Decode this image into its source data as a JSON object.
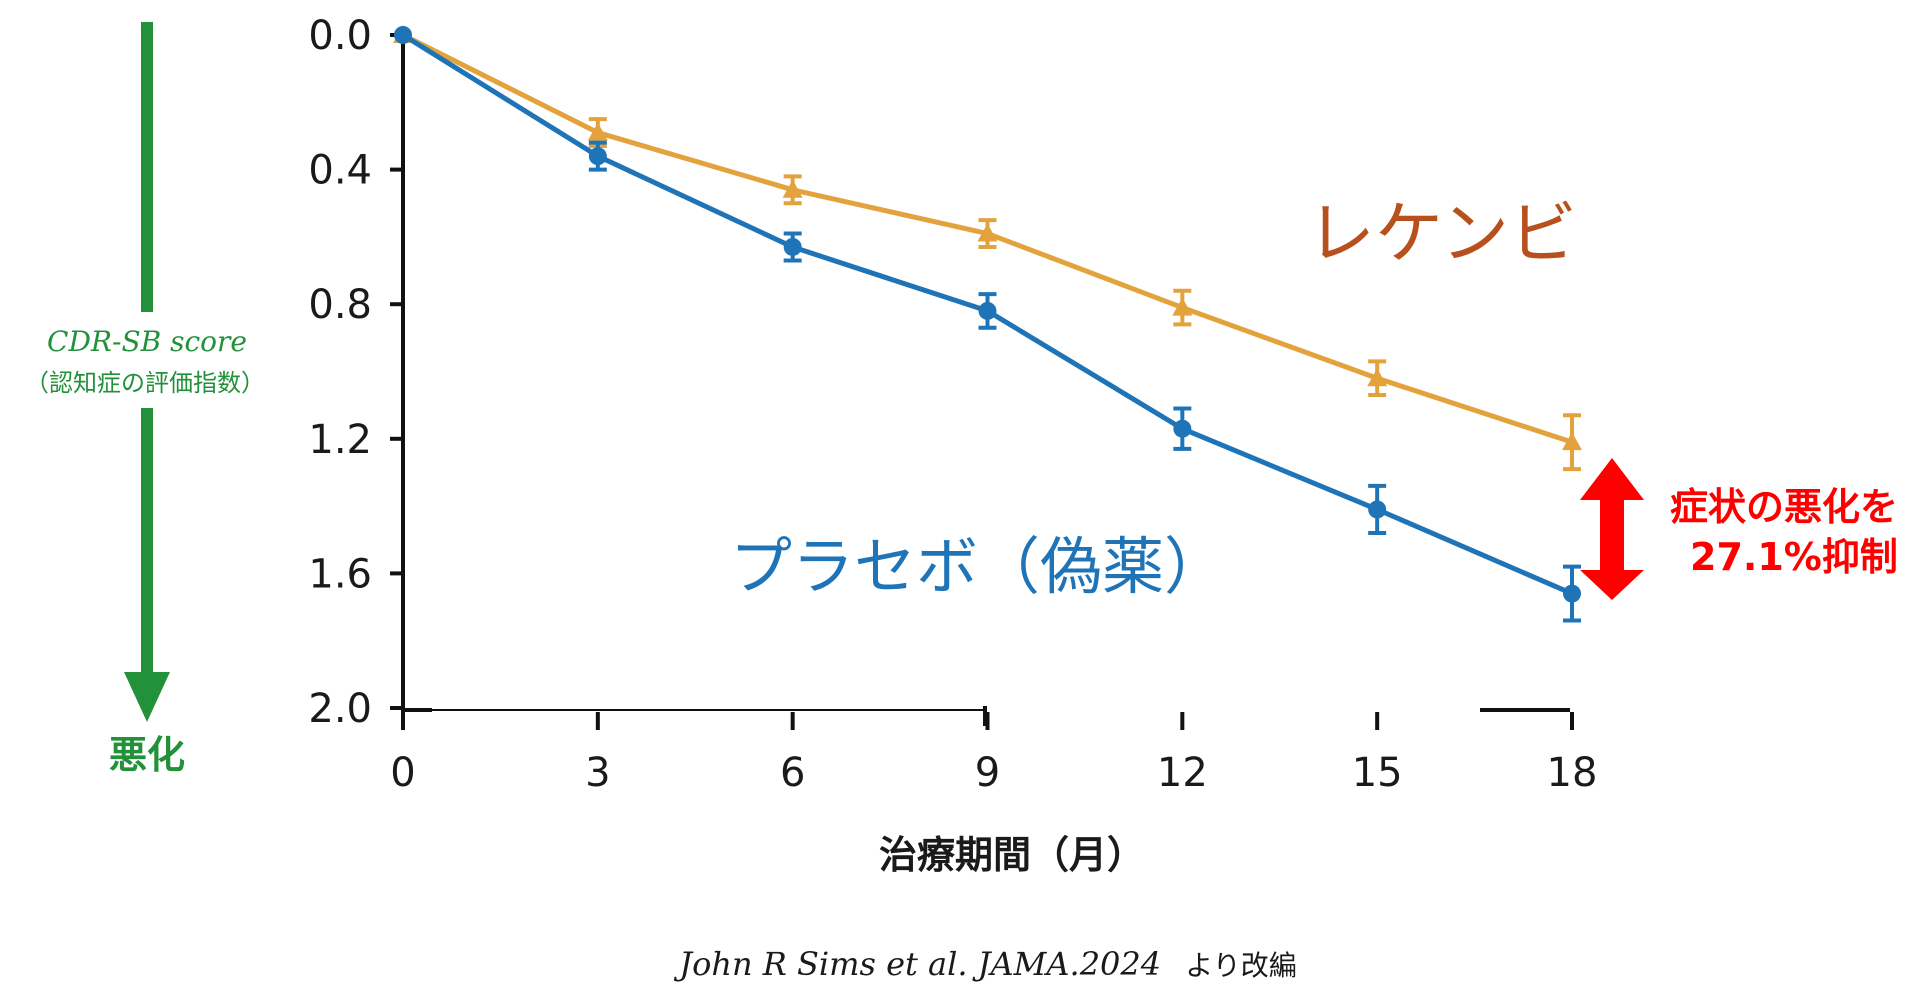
{
  "chart_data": {
    "type": "line",
    "title": "",
    "xlabel": "治療期間（月）",
    "ylabel": "CDR-SB score",
    "ylabel_sub": "（認知症の評価指数）",
    "worse_label": "悪化",
    "x": [
      0,
      3,
      6,
      9,
      12,
      15,
      18
    ],
    "x_ticks": [
      "0",
      "3",
      "6",
      "9",
      "12",
      "15",
      "18"
    ],
    "y_ticks": [
      "0.0",
      "0.4",
      "0.8",
      "1.2",
      "1.6",
      "2.0"
    ],
    "ylim": [
      0,
      2.0
    ],
    "y_inverted": true,
    "series": [
      {
        "name": "レケンビ",
        "color": "#e3a23c",
        "marker": "triangle",
        "values": [
          0.0,
          0.29,
          0.46,
          0.59,
          0.81,
          1.02,
          1.21
        ],
        "errors": [
          0.0,
          0.04,
          0.04,
          0.04,
          0.05,
          0.05,
          0.08
        ]
      },
      {
        "name": "プラセボ（偽薬）",
        "color": "#1f74b8",
        "marker": "circle",
        "values": [
          0.0,
          0.36,
          0.63,
          0.82,
          1.17,
          1.41,
          1.66
        ],
        "errors": [
          0.0,
          0.04,
          0.04,
          0.05,
          0.06,
          0.07,
          0.08
        ]
      }
    ],
    "annotation": {
      "line1": "症状の悪化を",
      "line2": "27.1%抑制",
      "color": "#ff0000"
    },
    "citation": "John R Sims et al. JAMA.2024",
    "citation_suffix": "より改編"
  }
}
